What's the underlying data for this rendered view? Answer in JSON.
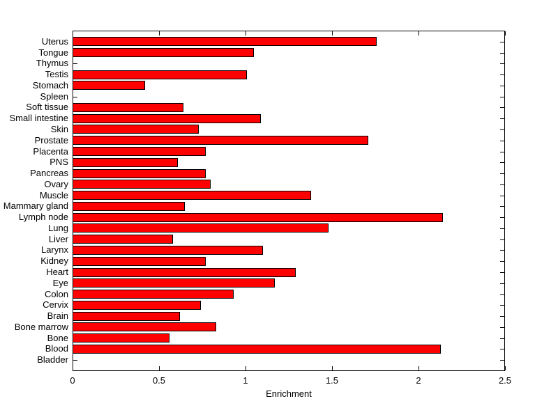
{
  "chart_data": {
    "type": "bar",
    "orientation": "horizontal",
    "title": "",
    "xlabel": "Enrichment",
    "ylabel": "",
    "xlim": [
      0,
      2.5
    ],
    "x_ticks": [
      0,
      0.5,
      1,
      1.5,
      2,
      2.5
    ],
    "x_tick_labels": [
      "0",
      "0.5",
      "1",
      "1.5",
      "2",
      "2.5"
    ],
    "grid": false,
    "legend": false,
    "bar_color": "#ff0000",
    "bar_edge_color": "#000000",
    "background_color": "#ffffff",
    "categories": [
      "Uterus",
      "Tongue",
      "Thymus",
      "Testis",
      "Stomach",
      "Spleen",
      "Soft tissue",
      "Small intestine",
      "Skin",
      "Prostate",
      "Placenta",
      "PNS",
      "Pancreas",
      "Ovary",
      "Muscle",
      "Mammary gland",
      "Lymph node",
      "Lung",
      "Liver",
      "Larynx",
      "Kidney",
      "Heart",
      "Eye",
      "Colon",
      "Cervix",
      "Brain",
      "Bone marrow",
      "Bone",
      "Blood",
      "Bladder"
    ],
    "values": [
      1.76,
      1.05,
      0,
      1.01,
      0.42,
      0,
      0.64,
      1.09,
      0.73,
      1.71,
      0.77,
      0.61,
      0.77,
      0.8,
      1.38,
      0.65,
      2.14,
      1.48,
      0.58,
      1.1,
      0.77,
      1.29,
      1.17,
      0.93,
      0.74,
      0.62,
      0.83,
      0.56,
      2.13,
      0
    ]
  }
}
